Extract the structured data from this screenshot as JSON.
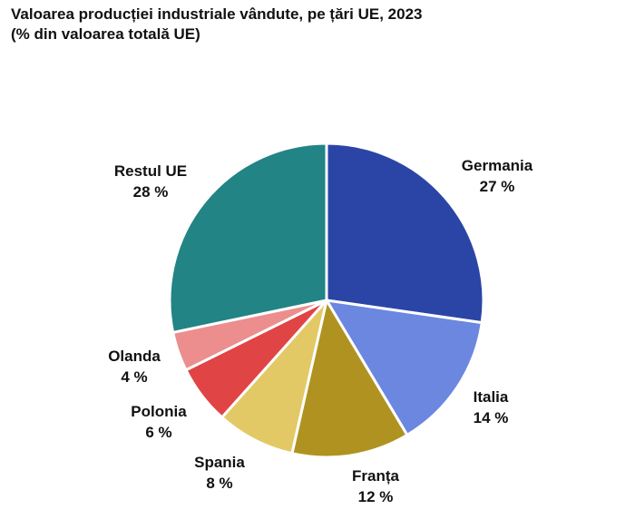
{
  "chart_data": {
    "type": "pie",
    "title": "Valoarea producției industriale vândute, pe țări UE, 2023",
    "subtitle": "(% din valoarea totală UE)",
    "unit": "%",
    "slices": [
      {
        "name": "Germania",
        "value": 27,
        "label": "27 %",
        "color": "#2B45A6"
      },
      {
        "name": "Italia",
        "value": 14,
        "label": "14 %",
        "color": "#6B87E0"
      },
      {
        "name": "Franța",
        "value": 12,
        "label": "12 %",
        "color": "#B09220"
      },
      {
        "name": "Spania",
        "value": 8,
        "label": "8 %",
        "color": "#E2C966"
      },
      {
        "name": "Polonia",
        "value": 6,
        "label": "6 %",
        "color": "#E04444"
      },
      {
        "name": "Olanda",
        "value": 4,
        "label": "4 %",
        "color": "#EC8E8E"
      },
      {
        "name": "Restul UE",
        "value": 28,
        "label": "28 %",
        "color": "#228484"
      }
    ]
  }
}
